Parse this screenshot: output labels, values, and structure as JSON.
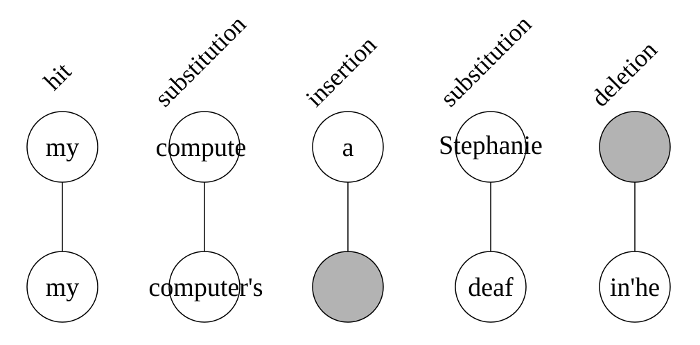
{
  "colors": {
    "empty_node": "#b3b3b3",
    "filled_node": "#ffffff",
    "stroke": "#000000"
  },
  "alignments": [
    {
      "operation": "hit",
      "reference": "my",
      "hypothesis": "my"
    },
    {
      "operation": "substitution",
      "reference": "compute",
      "hypothesis": "computer's"
    },
    {
      "operation": "insertion",
      "reference": "a",
      "hypothesis": ""
    },
    {
      "operation": "substitution",
      "reference": "Stephanie",
      "hypothesis": "deaf"
    },
    {
      "operation": "deletion",
      "reference": "",
      "hypothesis": "in'he"
    }
  ]
}
